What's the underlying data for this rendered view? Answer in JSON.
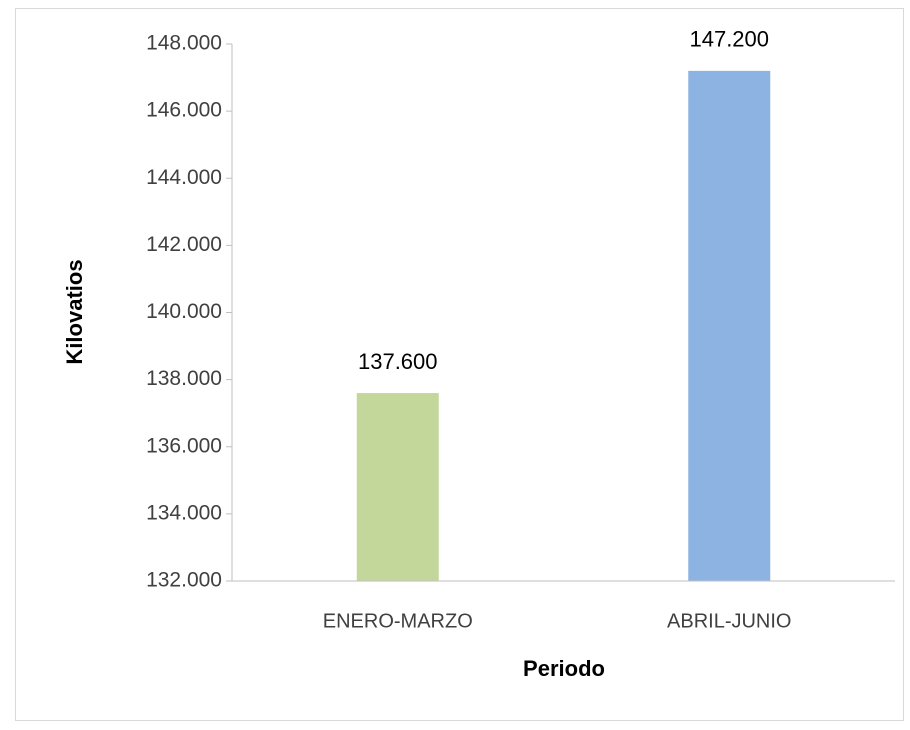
{
  "chart_data": {
    "type": "bar",
    "x_label": "Periodo",
    "y_label": "Kilovatios",
    "categories": [
      "ENERO-MARZO",
      "ABRIL-JUNIO"
    ],
    "values": [
      137600,
      147200
    ],
    "value_labels": [
      "137.600",
      "147.200"
    ],
    "colors": [
      "#c4d79b",
      "#8db3e2"
    ],
    "ylim": [
      132000,
      148000
    ],
    "yticks": [
      {
        "value": 132000,
        "label": "132.000"
      },
      {
        "value": 134000,
        "label": "134.000"
      },
      {
        "value": 136000,
        "label": "136.000"
      },
      {
        "value": 138000,
        "label": "138.000"
      },
      {
        "value": 140000,
        "label": "140.000"
      },
      {
        "value": 142000,
        "label": "142.000"
      },
      {
        "value": 144000,
        "label": "144.000"
      },
      {
        "value": 146000,
        "label": "146.000"
      },
      {
        "value": 148000,
        "label": "148.000"
      }
    ],
    "grid": false
  }
}
